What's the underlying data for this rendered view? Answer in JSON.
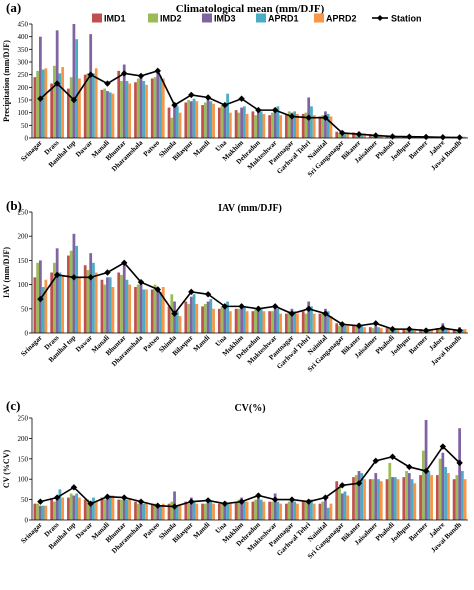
{
  "colors": {
    "IMD1": "#c0504d",
    "IMD2": "#9bbb59",
    "IMD3": "#8064a2",
    "APRD1": "#4bacc6",
    "APRD2": "#f79646",
    "Station": "#000000"
  },
  "legend_items": [
    "IMD1",
    "IMD2",
    "IMD3",
    "APRD1",
    "APRD2",
    "Station"
  ],
  "chart_data": [
    {
      "panel": "(a)",
      "type": "bar",
      "title": "Climatological mean (mm/DJF)",
      "ylabel": "Precipitation (mm/DJF)",
      "ylim": [
        0,
        450
      ],
      "yticks": [
        0,
        50,
        100,
        150,
        200,
        250,
        300,
        350,
        400,
        450
      ],
      "legend": "top",
      "categories": [
        "Srinagar",
        "Drass",
        "Banihal top",
        "Dawar",
        "Manali",
        "Bhuntar",
        "Dharamshala",
        "Patseo",
        "Shimla",
        "Bilaspur",
        "Mandi",
        "Una",
        "Mukhim",
        "Dehradun",
        "Mukteshwar",
        "Pantnagar",
        "Garhwal Tehri",
        "Nainital",
        "Sri Ganganagar",
        "Bikaner",
        "Jaisalmer",
        "Phalodi",
        "Jodhpur",
        "Barmer",
        "Jalore",
        "Jawai Bundh"
      ],
      "series": [
        {
          "name": "IMD1",
          "values": [
            240,
            215,
            195,
            250,
            190,
            265,
            220,
            235,
            120,
            140,
            130,
            120,
            110,
            105,
            90,
            95,
            95,
            85,
            25,
            22,
            15,
            10,
            8,
            6,
            6,
            5
          ]
        },
        {
          "name": "IMD2",
          "values": [
            265,
            285,
            240,
            255,
            195,
            225,
            235,
            240,
            80,
            150,
            140,
            130,
            100,
            90,
            100,
            105,
            100,
            90,
            20,
            18,
            12,
            8,
            7,
            5,
            5,
            5
          ]
        },
        {
          "name": "IMD3",
          "values": [
            400,
            425,
            450,
            410,
            185,
            290,
            240,
            260,
            140,
            145,
            155,
            120,
            120,
            110,
            110,
            100,
            160,
            105,
            20,
            20,
            15,
            10,
            8,
            6,
            5,
            5
          ]
        },
        {
          "name": "APRD1",
          "values": [
            270,
            255,
            390,
            255,
            180,
            225,
            225,
            245,
            125,
            155,
            145,
            175,
            125,
            105,
            125,
            105,
            125,
            95,
            20,
            18,
            12,
            10,
            8,
            6,
            5,
            5
          ]
        },
        {
          "name": "APRD2",
          "values": [
            275,
            280,
            235,
            275,
            175,
            215,
            210,
            235,
            100,
            145,
            135,
            100,
            95,
            95,
            90,
            95,
            90,
            85,
            20,
            18,
            12,
            8,
            7,
            5,
            5,
            5
          ]
        }
      ],
      "line": {
        "name": "Station",
        "values": [
          155,
          215,
          150,
          250,
          215,
          255,
          245,
          265,
          130,
          170,
          160,
          130,
          155,
          110,
          110,
          85,
          80,
          80,
          20,
          15,
          10,
          6,
          5,
          4,
          3,
          2
        ]
      }
    },
    {
      "panel": "(b)",
      "type": "bar",
      "title": "IAV (mm/DJF)",
      "ylabel": "IAV (mm/DJF)",
      "ylim": [
        0,
        250
      ],
      "yticks": [
        0,
        50,
        100,
        150,
        200,
        250
      ],
      "legend": "",
      "categories": [
        "Srinagar",
        "Drass",
        "Banihal top",
        "Dawar",
        "Manali",
        "Bhuntar",
        "Dharamshala",
        "Patseo",
        "Shimla",
        "Bilaspur",
        "Mandi",
        "Una",
        "Mukhim",
        "Dehradun",
        "Mukteshwar",
        "Pantnagar",
        "Garhwal Tehri",
        "Nainital",
        "Sri Ganganagar",
        "Bikaner",
        "Jaisalmer",
        "Phalodi",
        "Jodhpur",
        "Barmer",
        "Jalore",
        "Jawai Bundh"
      ],
      "series": [
        {
          "name": "IMD1",
          "values": [
            115,
            125,
            160,
            140,
            110,
            125,
            95,
            90,
            55,
            65,
            55,
            50,
            50,
            45,
            45,
            40,
            45,
            40,
            20,
            15,
            12,
            10,
            8,
            8,
            10,
            8
          ]
        },
        {
          "name": "IMD2",
          "values": [
            145,
            145,
            170,
            130,
            100,
            120,
            100,
            100,
            80,
            60,
            60,
            55,
            50,
            50,
            45,
            45,
            40,
            40,
            15,
            15,
            10,
            8,
            6,
            6,
            8,
            6
          ]
        },
        {
          "name": "IMD3",
          "values": [
            150,
            175,
            205,
            165,
            115,
            140,
            110,
            95,
            65,
            75,
            65,
            60,
            60,
            55,
            55,
            50,
            65,
            50,
            20,
            20,
            15,
            12,
            10,
            10,
            20,
            12
          ]
        },
        {
          "name": "APRD1",
          "values": [
            95,
            125,
            180,
            145,
            115,
            110,
            90,
            85,
            45,
            80,
            70,
            65,
            55,
            50,
            50,
            45,
            55,
            45,
            15,
            15,
            12,
            10,
            8,
            8,
            10,
            8
          ]
        },
        {
          "name": "APRD2",
          "values": [
            110,
            120,
            115,
            125,
            95,
            100,
            90,
            95,
            35,
            60,
            50,
            45,
            45,
            45,
            40,
            40,
            40,
            35,
            15,
            12,
            10,
            8,
            6,
            6,
            8,
            8
          ]
        }
      ],
      "line": {
        "name": "Station",
        "values": [
          70,
          120,
          115,
          115,
          125,
          145,
          105,
          90,
          40,
          85,
          80,
          55,
          55,
          50,
          55,
          40,
          50,
          40,
          18,
          15,
          20,
          8,
          8,
          5,
          10,
          5
        ]
      }
    },
    {
      "panel": "(c)",
      "type": "bar",
      "title": "CV(%)",
      "ylabel": "CV (%CV)",
      "ylim": [
        0,
        250
      ],
      "yticks": [
        0,
        50,
        100,
        150,
        200,
        250
      ],
      "legend": "",
      "categories": [
        "Srinagar",
        "Drass",
        "Banihal top",
        "Dawar",
        "Manali",
        "Bhuntar",
        "Dharamshala",
        "Patseo",
        "Shimla",
        "Bilaspur",
        "Mandi",
        "Una",
        "Mukhim",
        "Dehradun",
        "Mukteshwar",
        "Pantnagar",
        "Garhwal Tehri",
        "Nainital",
        "Sri Ganganagar",
        "Bikaner",
        "Jaisalmer",
        "Phalodi",
        "Jodhpur",
        "Barmer",
        "Jalore",
        "Jawai Bundh"
      ],
      "series": [
        {
          "name": "IMD1",
          "values": [
            40,
            50,
            55,
            50,
            55,
            50,
            45,
            40,
            40,
            45,
            40,
            40,
            45,
            45,
            45,
            40,
            45,
            40,
            95,
            105,
            100,
            100,
            105,
            110,
            110,
            100
          ]
        },
        {
          "name": "IMD2",
          "values": [
            40,
            45,
            65,
            50,
            50,
            50,
            40,
            40,
            45,
            40,
            40,
            40,
            50,
            50,
            45,
            45,
            45,
            45,
            80,
            110,
            100,
            140,
            120,
            170,
            150,
            110
          ]
        },
        {
          "name": "IMD3",
          "values": [
            35,
            55,
            60,
            45,
            55,
            50,
            45,
            35,
            70,
            55,
            45,
            45,
            55,
            65,
            65,
            45,
            45,
            50,
            65,
            120,
            115,
            105,
            115,
            245,
            165,
            225
          ]
        },
        {
          "name": "APRD1",
          "values": [
            35,
            75,
            65,
            55,
            60,
            50,
            40,
            35,
            35,
            45,
            45,
            40,
            45,
            50,
            45,
            45,
            50,
            30,
            70,
            115,
            100,
            105,
            100,
            120,
            130,
            120
          ]
        },
        {
          "name": "APRD2",
          "values": [
            35,
            55,
            55,
            45,
            60,
            50,
            40,
            40,
            35,
            40,
            40,
            40,
            45,
            45,
            40,
            40,
            40,
            40,
            60,
            100,
            95,
            100,
            90,
            110,
            115,
            100
          ]
        }
      ],
      "line": {
        "name": "Station",
        "values": [
          45,
          55,
          80,
          40,
          57,
          55,
          45,
          35,
          33,
          45,
          48,
          40,
          45,
          60,
          50,
          50,
          45,
          55,
          85,
          90,
          145,
          155,
          130,
          120,
          180,
          140
        ]
      }
    }
  ]
}
